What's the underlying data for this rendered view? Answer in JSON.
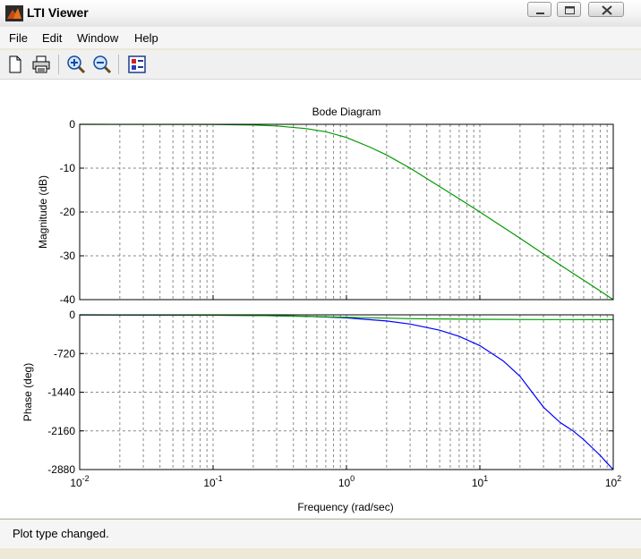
{
  "window": {
    "title": "LTI Viewer"
  },
  "menu": [
    "File",
    "Edit",
    "Window",
    "Help"
  ],
  "toolbar": {
    "buttons": [
      {
        "name": "new-icon"
      },
      {
        "name": "print-icon"
      },
      {
        "name": "zoom-in-icon"
      },
      {
        "name": "zoom-out-icon"
      },
      {
        "name": "plot-config-icon"
      }
    ]
  },
  "status": {
    "text": "Plot type changed."
  },
  "colors": {
    "magnitude_trace": "#009900",
    "phase_trace_1": "#0000ff",
    "phase_trace_2": "#009900",
    "grid": "#8a8a8a"
  },
  "chart_data": {
    "type": "line",
    "title": "Bode Diagram",
    "xlabel": "Frequency  (rad/sec)",
    "xscale": "log",
    "xlim": [
      0.01,
      100
    ],
    "xticks": [
      0.01,
      0.1,
      1,
      10,
      100
    ],
    "xticklabels": [
      {
        "base": "10",
        "exp": "-2"
      },
      {
        "base": "10",
        "exp": "-1"
      },
      {
        "base": "10",
        "exp": "0"
      },
      {
        "base": "10",
        "exp": "1"
      },
      {
        "base": "10",
        "exp": "2"
      }
    ],
    "grid": true,
    "panels": [
      {
        "ylabel": "Magnitude (dB)",
        "ylim": [
          -40,
          0
        ],
        "yticks": [
          0,
          -10,
          -20,
          -30,
          -40
        ],
        "series": [
          {
            "color": "#009900",
            "x": [
              0.01,
              0.1,
              0.2,
              0.3,
              0.5,
              0.7,
              1,
              1.5,
              2,
              3,
              5,
              7,
              10,
              20,
              30,
              50,
              70,
              100
            ],
            "y": [
              0,
              -0.04,
              -0.17,
              -0.37,
              -0.97,
              -1.7,
              -3.0,
              -5.2,
              -7.0,
              -10.0,
              -14.2,
              -17.0,
              -20.0,
              -26.0,
              -29.6,
              -34.0,
              -36.9,
              -40.0
            ]
          }
        ]
      },
      {
        "ylabel": "Phase (deg)",
        "ylim": [
          -2880,
          0
        ],
        "yticks": [
          0,
          -720,
          -1440,
          -2160,
          -2880
        ],
        "series": [
          {
            "color": "#0000ff",
            "x": [
              0.01,
              0.1,
              0.2,
              0.5,
              1,
              2,
              3,
              5,
              7,
              10,
              15,
              20,
              30,
              40,
              50,
              60,
              70,
              80,
              90,
              100
            ],
            "y": [
              0,
              -6,
              -12,
              -29,
              -57,
              -115,
              -172,
              -286,
              -401,
              -573,
              -859,
              -1146,
              -1719,
              -2005,
              -2160,
              -2320,
              -2480,
              -2620,
              -2760,
              -2880
            ]
          },
          {
            "color": "#009900",
            "x": [
              0.01,
              0.1,
              0.3,
              1,
              3,
              10,
              30,
              100
            ],
            "y": [
              -1,
              -6,
              -16,
              -45,
              -72,
              -84,
              -88,
              -90
            ]
          }
        ]
      }
    ]
  }
}
